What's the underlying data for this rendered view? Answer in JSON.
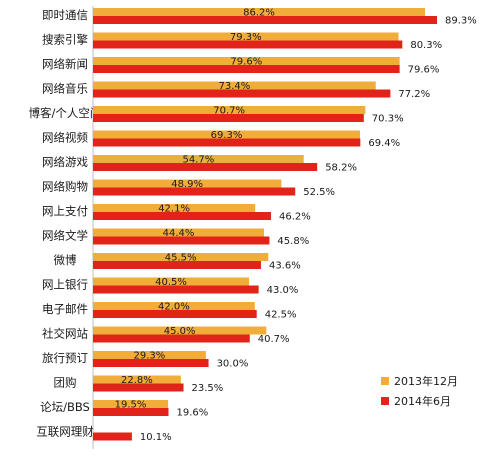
{
  "chart_data": {
    "type": "bar",
    "orientation": "horizontal",
    "categories": [
      "即时通信",
      "搜索引擎",
      "网络新闻",
      "网络音乐",
      "博客/个人空间",
      "网络视频",
      "网络游戏",
      "网络购物",
      "网上支付",
      "网络文学",
      "微博",
      "网上银行",
      "电子邮件",
      "社交网站",
      "旅行预订",
      "团购",
      "论坛/BBS",
      "互联网理财"
    ],
    "series": [
      {
        "name": "2013年12月",
        "color": "#f0ad3a",
        "values": [
          86.2,
          79.3,
          79.6,
          73.4,
          70.7,
          69.3,
          54.7,
          48.9,
          42.1,
          44.4,
          45.5,
          40.5,
          42.0,
          45.0,
          29.3,
          22.8,
          19.5,
          null
        ],
        "labels": [
          "86.2%",
          "79.3%",
          "79.6%",
          "73.4%",
          "70.7%",
          "69.3%",
          "54.7%",
          "48.9%",
          "42.1%",
          "44.4%",
          "45.5%",
          "40.5%",
          "42.0%",
          "45.0%",
          "29.3%",
          "22.8%",
          "19.5%",
          ""
        ]
      },
      {
        "name": "2014年6月",
        "color": "#e2231a",
        "values": [
          89.3,
          80.3,
          79.6,
          77.2,
          70.3,
          69.4,
          58.2,
          52.5,
          46.2,
          45.8,
          43.6,
          43.0,
          42.5,
          40.7,
          30.0,
          23.5,
          19.6,
          10.1
        ],
        "labels": [
          "89.3%",
          "80.3%",
          "79.6%",
          "77.2%",
          "70.3%",
          "69.4%",
          "58.2%",
          "52.5%",
          "46.2%",
          "45.8%",
          "43.6%",
          "43.0%",
          "42.5%",
          "40.7%",
          "30.0%",
          "23.5%",
          "19.6%",
          "10.1%"
        ]
      }
    ],
    "xlim": [
      0,
      100
    ],
    "legend_position": "bottom-right",
    "grid": false
  }
}
